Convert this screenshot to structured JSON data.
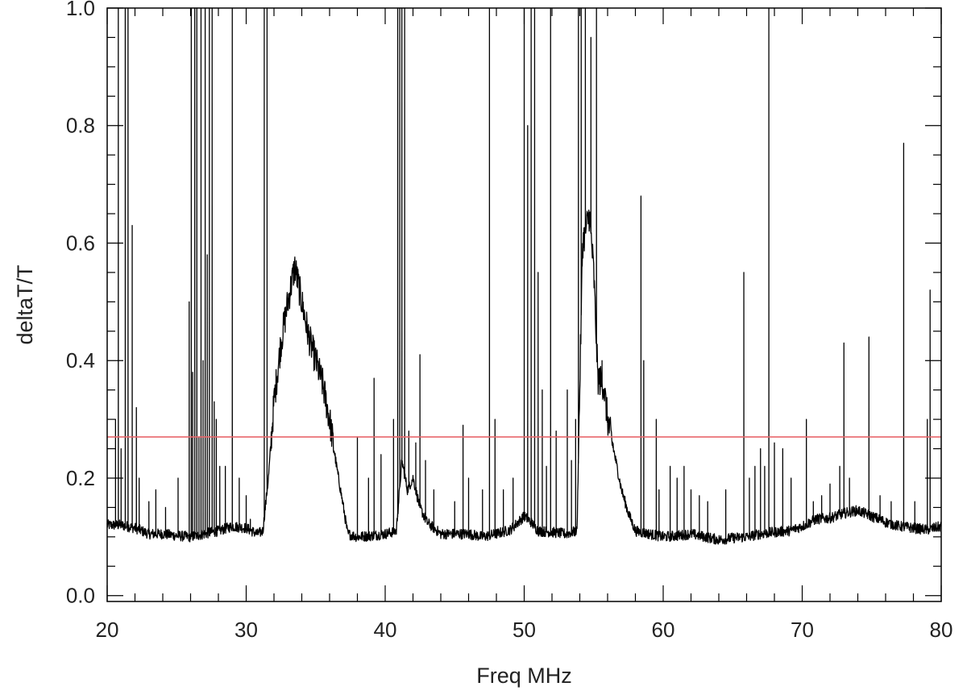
{
  "chart_data": {
    "type": "line",
    "title": "",
    "xlabel": "Freq MHz",
    "ylabel": "deltaT/T",
    "xlim": [
      20,
      80
    ],
    "ylim": [
      -0.01,
      1.0
    ],
    "x_ticks": [
      20,
      30,
      40,
      50,
      60,
      70,
      80
    ],
    "x_tick_labels": [
      "20",
      "30",
      "40",
      "50",
      "60",
      "70",
      "80"
    ],
    "y_ticks": [
      0.0,
      0.2,
      0.4,
      0.6,
      0.8,
      1.0
    ],
    "y_tick_labels": [
      "0.0",
      "0.2",
      "0.4",
      "0.6",
      "0.8",
      "1.0"
    ],
    "x_minor_step": 2,
    "y_minor_step": 0.05,
    "grid": false,
    "series": [
      {
        "color": "#000000",
        "baseline": [
          [
            20.0,
            0.12
          ],
          [
            21.0,
            0.12
          ],
          [
            22.0,
            0.115
          ],
          [
            23.0,
            0.105
          ],
          [
            24.0,
            0.105
          ],
          [
            25.0,
            0.102
          ],
          [
            26.0,
            0.1
          ],
          [
            27.0,
            0.105
          ],
          [
            28.0,
            0.11
          ],
          [
            29.0,
            0.118
          ],
          [
            30.0,
            0.115
          ],
          [
            30.8,
            0.105
          ],
          [
            31.2,
            0.11
          ],
          [
            31.6,
            0.2
          ],
          [
            32.0,
            0.33
          ],
          [
            32.5,
            0.43
          ],
          [
            33.0,
            0.5
          ],
          [
            33.5,
            0.56
          ],
          [
            34.0,
            0.5
          ],
          [
            34.5,
            0.44
          ],
          [
            35.0,
            0.4
          ],
          [
            35.5,
            0.36
          ],
          [
            36.0,
            0.3
          ],
          [
            36.5,
            0.22
          ],
          [
            37.0,
            0.15
          ],
          [
            37.3,
            0.105
          ],
          [
            38.0,
            0.1
          ],
          [
            39.0,
            0.102
          ],
          [
            40.0,
            0.105
          ],
          [
            40.8,
            0.11
          ],
          [
            41.2,
            0.23
          ],
          [
            41.6,
            0.18
          ],
          [
            42.0,
            0.2
          ],
          [
            42.5,
            0.15
          ],
          [
            43.0,
            0.125
          ],
          [
            44.0,
            0.105
          ],
          [
            45.0,
            0.105
          ],
          [
            46.0,
            0.105
          ],
          [
            47.0,
            0.1
          ],
          [
            48.0,
            0.105
          ],
          [
            49.0,
            0.112
          ],
          [
            50.0,
            0.135
          ],
          [
            50.5,
            0.125
          ],
          [
            51.0,
            0.11
          ],
          [
            52.0,
            0.108
          ],
          [
            53.0,
            0.105
          ],
          [
            53.8,
            0.11
          ],
          [
            54.2,
            0.6
          ],
          [
            54.7,
            0.65
          ],
          [
            55.0,
            0.55
          ],
          [
            55.3,
            0.37
          ],
          [
            55.7,
            0.36
          ],
          [
            56.0,
            0.3
          ],
          [
            56.5,
            0.24
          ],
          [
            57.0,
            0.18
          ],
          [
            57.5,
            0.14
          ],
          [
            58.0,
            0.11
          ],
          [
            59.0,
            0.105
          ],
          [
            60.0,
            0.1
          ],
          [
            61.0,
            0.102
          ],
          [
            62.0,
            0.105
          ],
          [
            63.0,
            0.1
          ],
          [
            64.0,
            0.095
          ],
          [
            65.0,
            0.098
          ],
          [
            66.0,
            0.1
          ],
          [
            67.0,
            0.105
          ],
          [
            68.0,
            0.108
          ],
          [
            69.0,
            0.11
          ],
          [
            70.0,
            0.118
          ],
          [
            71.0,
            0.13
          ],
          [
            72.0,
            0.132
          ],
          [
            73.0,
            0.14
          ],
          [
            74.0,
            0.145
          ],
          [
            75.0,
            0.135
          ],
          [
            76.0,
            0.125
          ],
          [
            77.0,
            0.118
          ],
          [
            78.0,
            0.115
          ],
          [
            79.0,
            0.112
          ],
          [
            80.0,
            0.118
          ]
        ],
        "spikes": [
          [
            20.6,
            0.3
          ],
          [
            20.8,
            1.0
          ],
          [
            21.0,
            0.25
          ],
          [
            21.3,
            1.0
          ],
          [
            21.5,
            1.0
          ],
          [
            21.8,
            0.63
          ],
          [
            22.1,
            0.32
          ],
          [
            22.3,
            0.2
          ],
          [
            23.0,
            0.16
          ],
          [
            23.5,
            0.18
          ],
          [
            24.2,
            0.15
          ],
          [
            25.1,
            0.2
          ],
          [
            25.9,
            0.5
          ],
          [
            26.05,
            1.0
          ],
          [
            26.15,
            0.38
          ],
          [
            26.3,
            1.0
          ],
          [
            26.45,
            1.0
          ],
          [
            26.6,
            0.27
          ],
          [
            26.75,
            1.0
          ],
          [
            26.9,
            0.4
          ],
          [
            27.05,
            1.0
          ],
          [
            27.2,
            0.58
          ],
          [
            27.35,
            1.0
          ],
          [
            27.55,
            1.0
          ],
          [
            27.7,
            0.33
          ],
          [
            27.85,
            0.3
          ],
          [
            28.1,
            0.22
          ],
          [
            28.5,
            0.22
          ],
          [
            29.0,
            1.0
          ],
          [
            29.5,
            0.2
          ],
          [
            30.0,
            0.17
          ],
          [
            30.3,
            0.13
          ],
          [
            31.3,
            1.0
          ],
          [
            31.5,
            1.0
          ],
          [
            38.0,
            0.27
          ],
          [
            38.8,
            0.2
          ],
          [
            39.2,
            0.37
          ],
          [
            39.7,
            0.24
          ],
          [
            40.6,
            0.3
          ],
          [
            40.9,
            1.0
          ],
          [
            41.05,
            1.0
          ],
          [
            41.2,
            1.0
          ],
          [
            41.4,
            1.0
          ],
          [
            41.7,
            0.28
          ],
          [
            42.2,
            0.26
          ],
          [
            42.5,
            0.41
          ],
          [
            42.9,
            0.23
          ],
          [
            43.5,
            0.18
          ],
          [
            45.0,
            0.16
          ],
          [
            45.6,
            0.29
          ],
          [
            46.0,
            0.2
          ],
          [
            47.0,
            0.18
          ],
          [
            47.5,
            1.0
          ],
          [
            47.9,
            0.3
          ],
          [
            48.5,
            0.18
          ],
          [
            49.2,
            0.2
          ],
          [
            50.0,
            1.0
          ],
          [
            50.25,
            0.8
          ],
          [
            50.5,
            1.0
          ],
          [
            50.75,
            1.0
          ],
          [
            51.0,
            0.55
          ],
          [
            51.3,
            0.35
          ],
          [
            51.6,
            0.22
          ],
          [
            51.9,
            1.0
          ],
          [
            52.3,
            0.28
          ],
          [
            53.1,
            0.35
          ],
          [
            53.4,
            0.23
          ],
          [
            53.7,
            0.3
          ],
          [
            53.9,
            1.0
          ],
          [
            54.1,
            1.0
          ],
          [
            54.4,
            1.0
          ],
          [
            54.8,
            0.95
          ],
          [
            55.2,
            1.0
          ],
          [
            55.6,
            0.4
          ],
          [
            58.4,
            0.68
          ],
          [
            58.6,
            0.4
          ],
          [
            59.5,
            0.3
          ],
          [
            59.7,
            0.18
          ],
          [
            60.5,
            0.22
          ],
          [
            61.0,
            0.2
          ],
          [
            61.5,
            0.22
          ],
          [
            62.0,
            0.18
          ],
          [
            62.6,
            0.17
          ],
          [
            63.2,
            0.16
          ],
          [
            64.5,
            0.18
          ],
          [
            65.8,
            0.55
          ],
          [
            66.2,
            0.2
          ],
          [
            66.6,
            0.22
          ],
          [
            67.0,
            0.25
          ],
          [
            67.3,
            0.22
          ],
          [
            67.6,
            1.0
          ],
          [
            68.0,
            0.26
          ],
          [
            68.6,
            0.25
          ],
          [
            69.2,
            0.2
          ],
          [
            70.3,
            0.3
          ],
          [
            70.8,
            0.16
          ],
          [
            71.4,
            0.17
          ],
          [
            72.0,
            0.19
          ],
          [
            72.7,
            0.22
          ],
          [
            73.0,
            0.43
          ],
          [
            73.4,
            0.2
          ],
          [
            74.8,
            0.44
          ],
          [
            75.6,
            0.17
          ],
          [
            76.4,
            0.16
          ],
          [
            77.3,
            0.77
          ],
          [
            78.1,
            0.16
          ],
          [
            79.0,
            0.3
          ],
          [
            79.2,
            0.52
          ]
        ]
      },
      {
        "color": "#e8676b",
        "type": "horizontal_line",
        "y": 0.27
      }
    ]
  }
}
